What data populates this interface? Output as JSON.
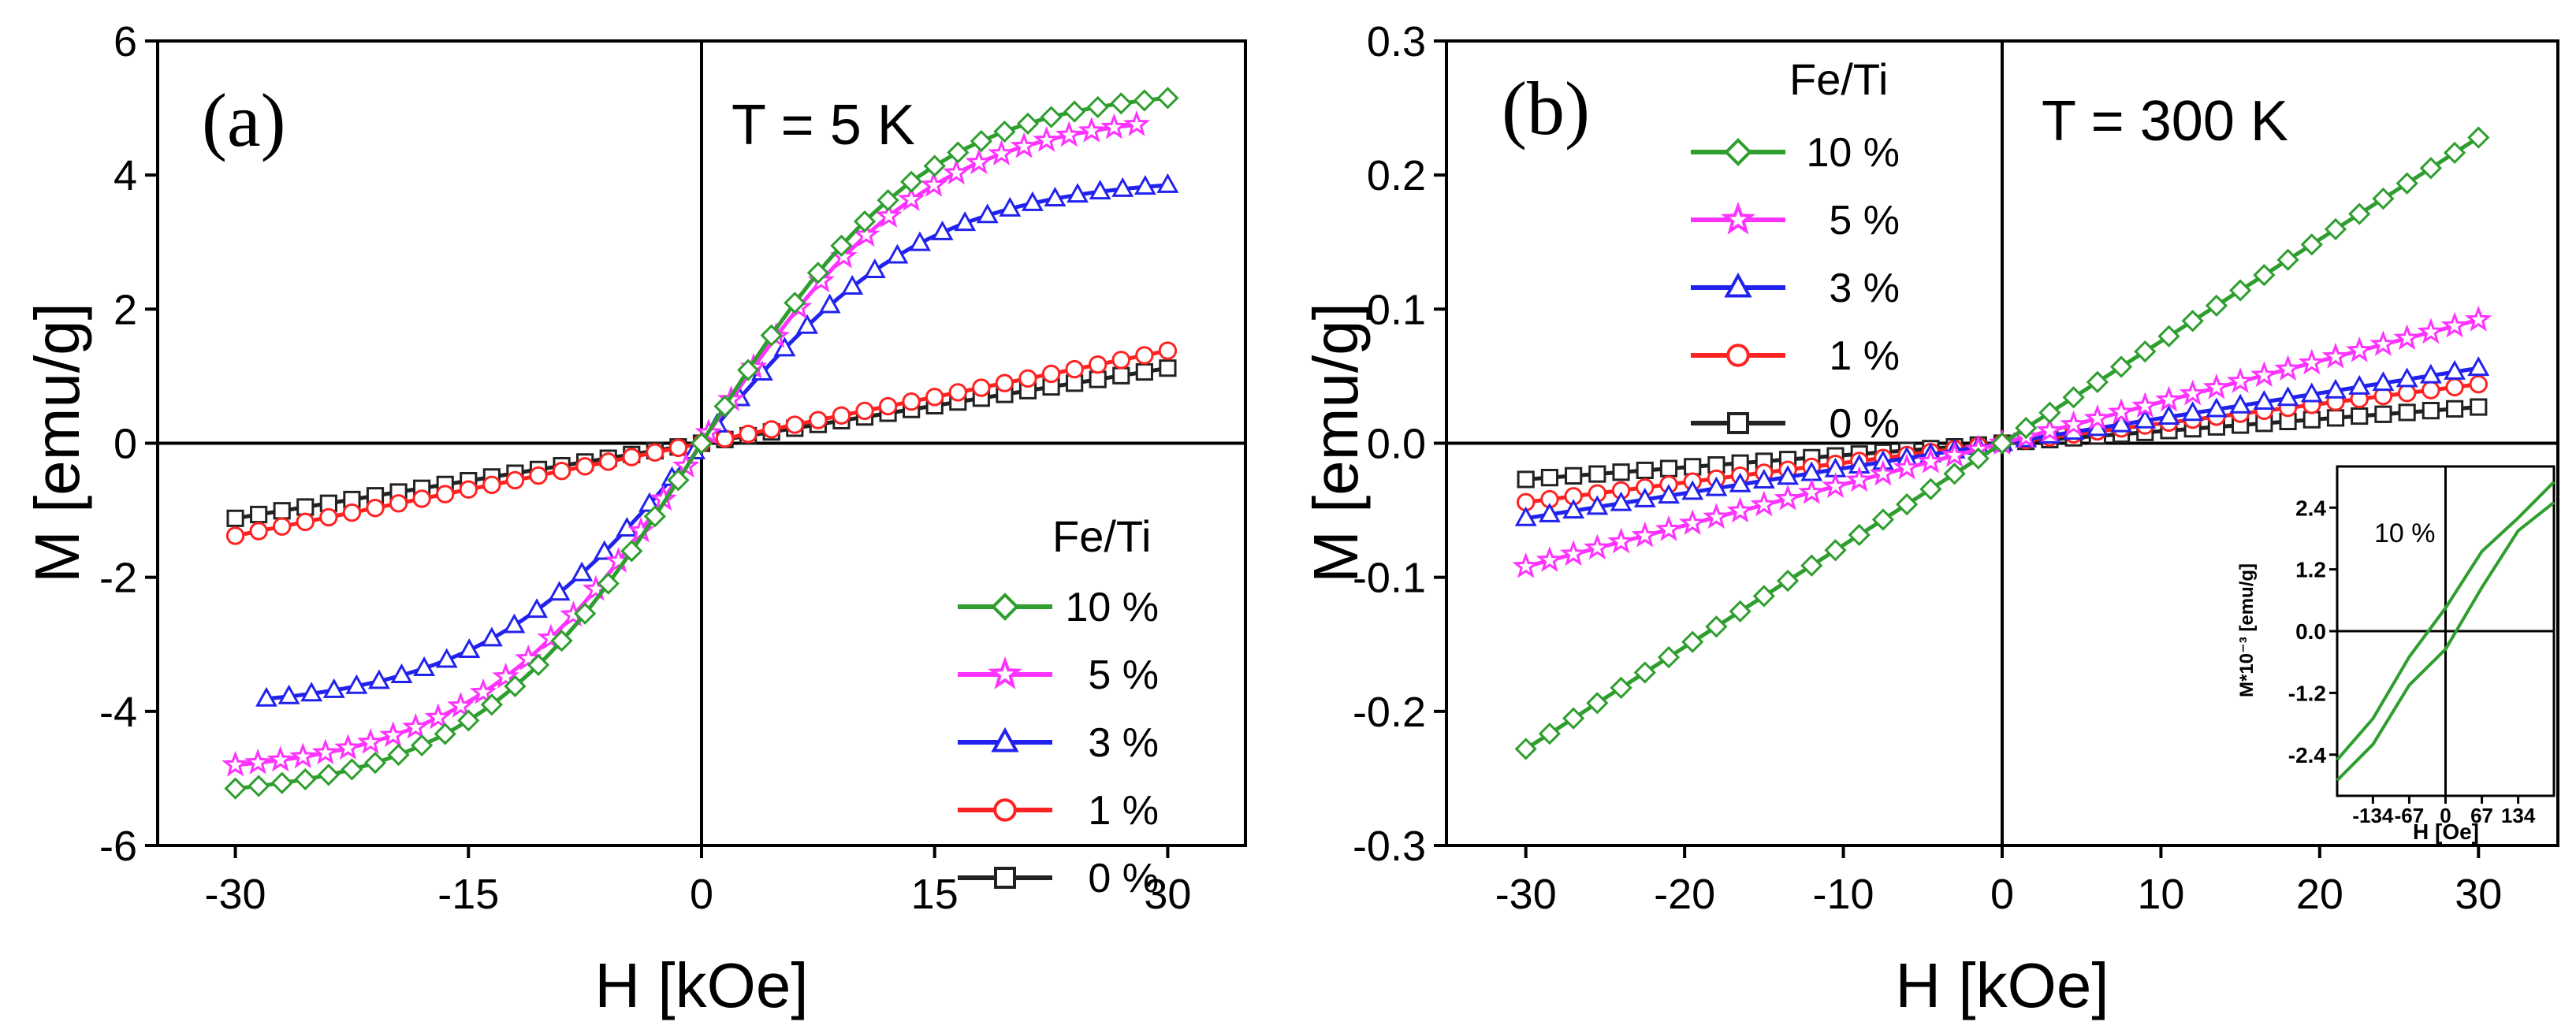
{
  "colors": {
    "green": "#2e9e2e",
    "magenta": "#ff33ff",
    "blue": "#2222ee",
    "red": "#ff2222",
    "black": "#222222"
  },
  "chart_data": [
    {
      "type": "line",
      "panel_label": "(a)",
      "annotation": "T = 5 K",
      "xlabel": "H [kOe]",
      "ylabel": "M [emu/g]",
      "xlim": [
        -35,
        35
      ],
      "ylim": [
        -6,
        6
      ],
      "x_ticks": [
        "-30",
        "-15",
        "0",
        "15",
        "30"
      ],
      "x_tick_values": [
        -30,
        -15,
        0,
        15,
        30
      ],
      "y_ticks": [
        "-6",
        "-4",
        "-2",
        "0",
        "2",
        "4",
        "6"
      ],
      "y_tick_values": [
        -6,
        -4,
        -2,
        0,
        2,
        4,
        6
      ],
      "legend_title": "Fe/Ti",
      "legend_position": "bottom-right",
      "series": [
        {
          "name": "10 %",
          "color": "green",
          "marker": "diamond",
          "x_range": [
            -30,
            30
          ],
          "m_max": 5.15,
          "shape": "sat",
          "scale": 14.4
        },
        {
          "name": "5 %",
          "color": "magenta",
          "marker": "star",
          "x_range": [
            -30,
            28
          ],
          "m_max": 4.8,
          "shape": "sat",
          "scale": 14.4
        },
        {
          "name": "3 %",
          "color": "blue",
          "marker": "triangle",
          "x_range": [
            -28,
            30
          ],
          "m_max": 3.85,
          "shape": "sat",
          "scale": 14.4
        },
        {
          "name": "1 %",
          "color": "red",
          "marker": "circle",
          "x_range": [
            -30,
            30
          ],
          "m_max": 1.38,
          "shape": "linear"
        },
        {
          "name": "0 %",
          "color": "black",
          "marker": "square",
          "x_range": [
            -30,
            30
          ],
          "m_max": 1.12,
          "shape": "linear"
        }
      ]
    },
    {
      "type": "line",
      "panel_label": "(b)",
      "annotation": "T = 300 K",
      "xlabel": "H [kOe]",
      "ylabel": "M [emu/g]",
      "xlim": [
        -35,
        35
      ],
      "ylim": [
        -0.3,
        0.3
      ],
      "x_ticks": [
        "-30",
        "-20",
        "-10",
        "0",
        "10",
        "20",
        "30"
      ],
      "x_tick_values": [
        -30,
        -20,
        -10,
        0,
        10,
        20,
        30
      ],
      "y_ticks": [
        "-0.3",
        "-0.2",
        "-0.1",
        "0.0",
        "0.1",
        "0.2",
        "0.3"
      ],
      "y_tick_values": [
        -0.3,
        -0.2,
        -0.1,
        0.0,
        0.1,
        0.2,
        0.3
      ],
      "legend_title": "Fe/Ti",
      "legend_position": "top-left",
      "series": [
        {
          "name": "10 %",
          "color": "green",
          "marker": "diamond",
          "x_range": [
            -30,
            30
          ],
          "m_max": 0.228,
          "shape": "linear"
        },
        {
          "name": "5 %",
          "color": "magenta",
          "marker": "star",
          "x_range": [
            -30,
            30
          ],
          "m_max": 0.092,
          "shape": "linear"
        },
        {
          "name": "3 %",
          "color": "blue",
          "marker": "triangle",
          "x_range": [
            -30,
            30
          ],
          "m_max": 0.056,
          "shape": "linear"
        },
        {
          "name": "1 %",
          "color": "red",
          "marker": "circle",
          "x_range": [
            -30,
            30
          ],
          "m_max": 0.044,
          "shape": "linear"
        },
        {
          "name": "0 %",
          "color": "black",
          "marker": "square",
          "x_range": [
            -30,
            30
          ],
          "m_max": 0.027,
          "shape": "linear"
        }
      ],
      "inset": {
        "type": "line",
        "annotation": "10 %",
        "xlabel": "H [Oe]",
        "ylabel": "M*10⁻³ [emu/g]",
        "xlim": [
          -200,
          200
        ],
        "ylim": [
          -3.2,
          3.2
        ],
        "x_ticks": [
          "-134",
          "-67",
          "0",
          "67",
          "134"
        ],
        "x_tick_values": [
          -134,
          -67,
          0,
          67,
          134
        ],
        "y_ticks": [
          "2.4",
          "1.2",
          "0.0",
          "-1.2",
          "-2.4"
        ],
        "y_tick_values": [
          2.4,
          1.2,
          0.0,
          -1.2,
          -2.4
        ],
        "branches": [
          {
            "name": "upper",
            "x": [
              -200,
              -134,
              -67,
              0,
              67,
              134,
              200
            ],
            "y": [
              -2.5,
              -1.7,
              -0.5,
              0.45,
              1.55,
              2.2,
              2.9
            ]
          },
          {
            "name": "lower",
            "x": [
              -200,
              -134,
              -67,
              0,
              67,
              134,
              200
            ],
            "y": [
              -2.9,
              -2.2,
              -1.05,
              -0.35,
              0.85,
              1.95,
              2.5
            ]
          }
        ]
      }
    }
  ]
}
